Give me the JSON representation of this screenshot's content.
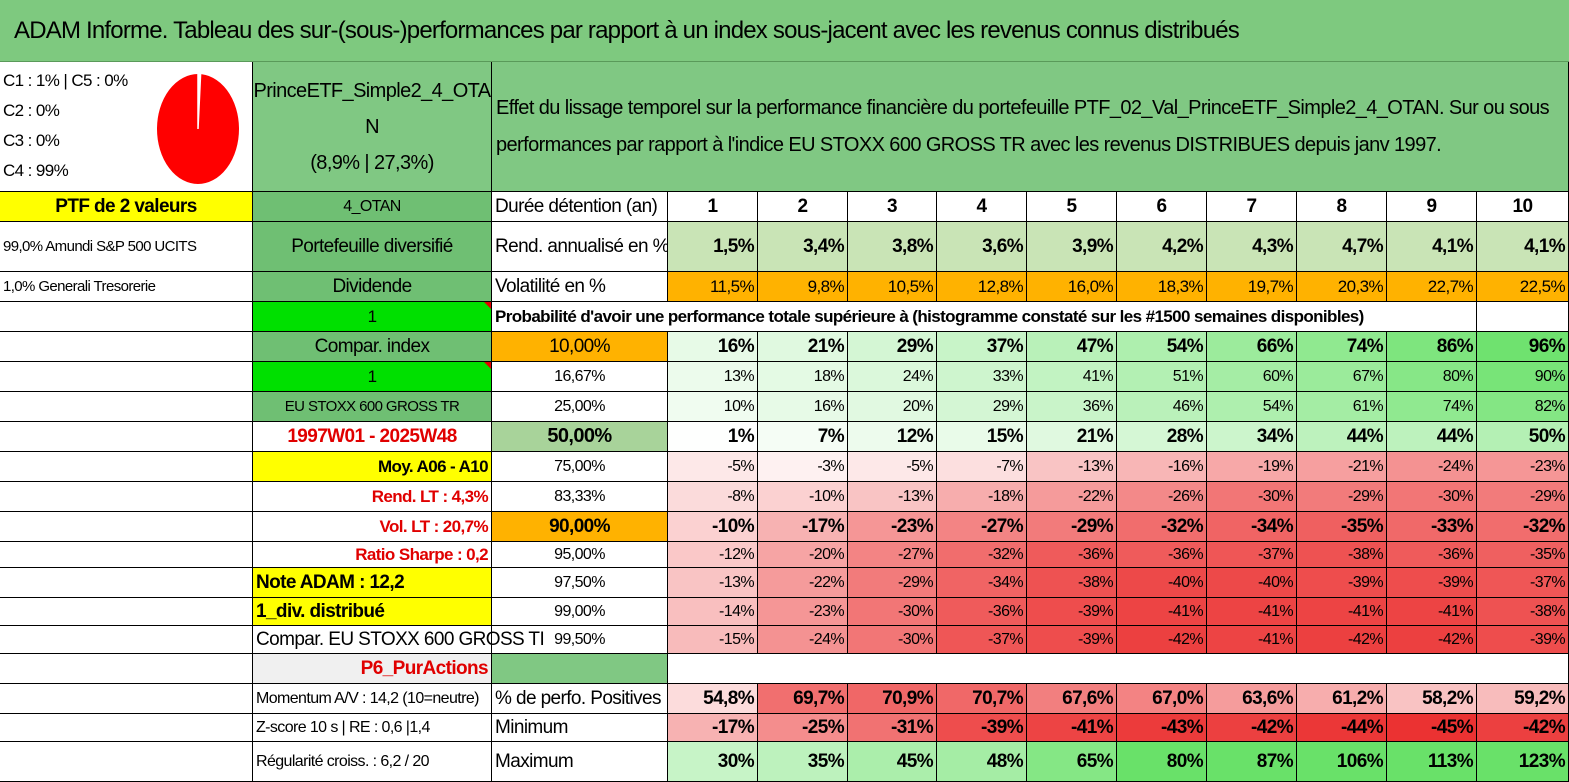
{
  "title": "ADAM Informe. Tableau des sur-(sous-)performances par rapport à un index sous-jacent avec les revenus connus distribués",
  "pie": {
    "legend": [
      "C1 : 1% | C5 : 0%",
      "C2 : 0%",
      "C3 : 0%",
      "C4 : 99%"
    ],
    "slices": [
      {
        "label": "C1",
        "value": 1,
        "color": "#ffffff"
      },
      {
        "label": "C4",
        "value": 99,
        "color": "#ff0000"
      }
    ]
  },
  "fund": {
    "name_line1": "PrinceETF_Simple2_4_OTA",
    "name_line2": "N",
    "stats": "(8,9% | 27,3%)"
  },
  "description": "Effet du lissage temporel sur la performance financière du portefeuille PTF_02_Val_PrinceETF_Simple2_4_OTAN. Sur ou sous performances par rapport à l'indice EU STOXX 600 GROSS TR avec les revenus DISTRIBUES depuis janv 1997.",
  "left_col": [
    "PTF de 2 valeurs",
    "99,0% Amundi S&P 500 UCITS",
    "1,0% Generali Tresorerie"
  ],
  "mid_col": {
    "otan": "4_OTAN",
    "diversifie": "Portefeuille diversifié",
    "dividende": "Dividende",
    "one_a": "1",
    "compar": "Compar. index",
    "one_b": "1",
    "index_name": "EU STOXX 600 GROSS TR",
    "period": "1997W01 - 2025W48",
    "moy": "Moy. A06 - A10",
    "rend_lt": "Rend. LT : 4,3%",
    "vol_lt": "Vol. LT : 20,7%",
    "sharpe": "Ratio Sharpe : 0,2",
    "note": "Note ADAM : 12,2",
    "div": "1_div. distribué",
    "compar_stoxx": "Compar. EU STOXX 600 GROSS TI",
    "p6": "P6_PurActions",
    "momentum": "Momentum A/V : 14,2 (10=neutre)",
    "zscore": "Z-score 10 s | RE : 0,6 |1,4",
    "regularite": "Régularité croiss. : 6,2 / 20"
  },
  "header": {
    "label": "Durée détention (an)",
    "years": [
      "1",
      "2",
      "3",
      "4",
      "5",
      "6",
      "7",
      "8",
      "9",
      "10"
    ]
  },
  "rend": {
    "label": "Rend. annualisé en %",
    "values": [
      "1,5%",
      "3,4%",
      "3,8%",
      "3,6%",
      "3,9%",
      "4,2%",
      "4,3%",
      "4,7%",
      "4,1%",
      "4,1%"
    ]
  },
  "vol": {
    "label": "Volatilité en %",
    "values": [
      "11,5%",
      "9,8%",
      "10,5%",
      "12,8%",
      "16,0%",
      "18,3%",
      "19,7%",
      "20,3%",
      "22,7%",
      "22,5%"
    ]
  },
  "prob_title": "Probabilité d'avoir une performance totale supérieure à (histogramme constaté sur les #1500 semaines disponibles)",
  "quantiles": [
    {
      "label": "10,00%",
      "values": [
        "16%",
        "21%",
        "29%",
        "37%",
        "47%",
        "54%",
        "66%",
        "74%",
        "86%",
        "96%"
      ]
    },
    {
      "label": "16,67%",
      "values": [
        "13%",
        "18%",
        "24%",
        "33%",
        "41%",
        "51%",
        "60%",
        "67%",
        "80%",
        "90%"
      ]
    },
    {
      "label": "25,00%",
      "values": [
        "10%",
        "16%",
        "20%",
        "29%",
        "36%",
        "46%",
        "54%",
        "61%",
        "74%",
        "82%"
      ]
    },
    {
      "label": "50,00%",
      "values": [
        "1%",
        "7%",
        "12%",
        "15%",
        "21%",
        "28%",
        "34%",
        "44%",
        "44%",
        "50%"
      ]
    },
    {
      "label": "75,00%",
      "values": [
        "-5%",
        "-3%",
        "-5%",
        "-7%",
        "-13%",
        "-16%",
        "-19%",
        "-21%",
        "-24%",
        "-23%"
      ]
    },
    {
      "label": "83,33%",
      "values": [
        "-8%",
        "-10%",
        "-13%",
        "-18%",
        "-22%",
        "-26%",
        "-30%",
        "-29%",
        "-30%",
        "-29%"
      ]
    },
    {
      "label": "90,00%",
      "values": [
        "-10%",
        "-17%",
        "-23%",
        "-27%",
        "-29%",
        "-32%",
        "-34%",
        "-35%",
        "-33%",
        "-32%"
      ]
    },
    {
      "label": "95,00%",
      "values": [
        "-12%",
        "-20%",
        "-27%",
        "-32%",
        "-36%",
        "-36%",
        "-37%",
        "-38%",
        "-36%",
        "-35%"
      ]
    },
    {
      "label": "97,50%",
      "values": [
        "-13%",
        "-22%",
        "-29%",
        "-34%",
        "-38%",
        "-40%",
        "-40%",
        "-39%",
        "-39%",
        "-37%"
      ]
    },
    {
      "label": "99,00%",
      "values": [
        "-14%",
        "-23%",
        "-30%",
        "-36%",
        "-39%",
        "-41%",
        "-41%",
        "-41%",
        "-41%",
        "-38%"
      ]
    },
    {
      "label": "99,50%",
      "values": [
        "-15%",
        "-24%",
        "-30%",
        "-37%",
        "-39%",
        "-42%",
        "-41%",
        "-42%",
        "-42%",
        "-39%"
      ]
    }
  ],
  "stats": [
    {
      "label": "% de perfo. Positives",
      "values": [
        "54,8%",
        "69,7%",
        "70,9%",
        "70,7%",
        "67,6%",
        "67,0%",
        "63,6%",
        "61,2%",
        "58,2%",
        "59,2%"
      ]
    },
    {
      "label": "Minimum",
      "values": [
        "-17%",
        "-25%",
        "-31%",
        "-39%",
        "-41%",
        "-43%",
        "-42%",
        "-44%",
        "-45%",
        "-42%"
      ]
    },
    {
      "label": "Maximum",
      "values": [
        "30%",
        "35%",
        "45%",
        "48%",
        "65%",
        "80%",
        "87%",
        "106%",
        "113%",
        "123%"
      ]
    }
  ],
  "colors": {
    "title_bg": "#7ec97f",
    "green_header": "#6fbf73",
    "yellow": "#ffff00",
    "orange": "#ffb200",
    "lime": "#00e000",
    "red_text": "#e00000"
  }
}
